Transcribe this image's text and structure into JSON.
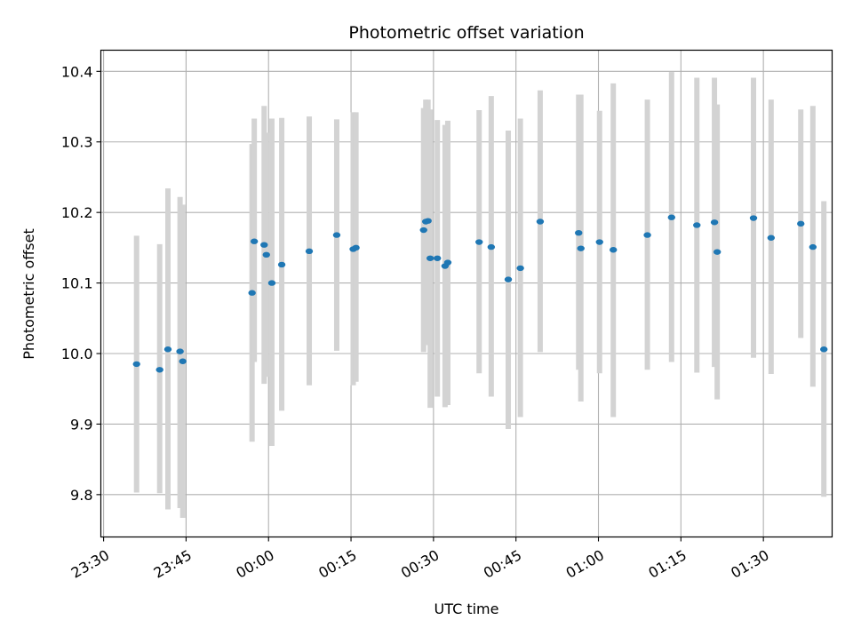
{
  "chart_data": {
    "type": "scatter",
    "title": "Photometric offset variation",
    "xlabel": "UTC time",
    "ylabel": "Photometric offset",
    "xlim_min": [
      -30.5,
      102.5
    ],
    "ylim": [
      9.74,
      10.43
    ],
    "grid": true,
    "colors": {
      "point": "#1f77b4",
      "errorbar": "#d3d3d3",
      "grid": "#b0b0b0"
    },
    "x_ticks": [
      {
        "value": -30,
        "label": "23:30"
      },
      {
        "value": -15,
        "label": "23:45"
      },
      {
        "value": 0,
        "label": "00:00"
      },
      {
        "value": 15,
        "label": "00:15"
      },
      {
        "value": 30,
        "label": "00:30"
      },
      {
        "value": 45,
        "label": "00:45"
      },
      {
        "value": 60,
        "label": "01:00"
      },
      {
        "value": 75,
        "label": "01:15"
      },
      {
        "value": 90,
        "label": "01:30"
      }
    ],
    "y_ticks": [
      {
        "value": 9.8,
        "label": "9.8"
      },
      {
        "value": 9.9,
        "label": "9.9"
      },
      {
        "value": 10.0,
        "label": "10.0"
      },
      {
        "value": 10.1,
        "label": "10.1"
      },
      {
        "value": 10.2,
        "label": "10.2"
      },
      {
        "value": 10.3,
        "label": "10.3"
      },
      {
        "value": 10.4,
        "label": "10.4"
      }
    ],
    "points": [
      {
        "t": -24.0,
        "y": 9.985,
        "lo": 9.803,
        "hi": 10.167
      },
      {
        "t": -19.8,
        "y": 9.977,
        "lo": 9.802,
        "hi": 10.155
      },
      {
        "t": -18.3,
        "y": 10.006,
        "lo": 9.779,
        "hi": 10.234
      },
      {
        "t": -16.1,
        "y": 10.003,
        "lo": 9.781,
        "hi": 10.222
      },
      {
        "t": -15.6,
        "y": 9.989,
        "lo": 9.767,
        "hi": 10.211
      },
      {
        "t": -3.0,
        "y": 10.086,
        "lo": 9.875,
        "hi": 10.297
      },
      {
        "t": -2.6,
        "y": 10.159,
        "lo": 9.988,
        "hi": 10.333
      },
      {
        "t": -0.8,
        "y": 10.154,
        "lo": 9.957,
        "hi": 10.351
      },
      {
        "t": -0.4,
        "y": 10.14,
        "lo": 9.967,
        "hi": 10.313
      },
      {
        "t": 0.6,
        "y": 10.1,
        "lo": 9.869,
        "hi": 10.333
      },
      {
        "t": 2.4,
        "y": 10.126,
        "lo": 9.919,
        "hi": 10.334
      },
      {
        "t": 7.4,
        "y": 10.145,
        "lo": 9.955,
        "hi": 10.336
      },
      {
        "t": 12.4,
        "y": 10.168,
        "lo": 10.004,
        "hi": 10.332
      },
      {
        "t": 15.4,
        "y": 10.148,
        "lo": 9.955,
        "hi": 10.342
      },
      {
        "t": 15.9,
        "y": 10.15,
        "lo": 9.96,
        "hi": 10.342
      },
      {
        "t": 28.2,
        "y": 10.175,
        "lo": 10.002,
        "hi": 10.348
      },
      {
        "t": 28.6,
        "y": 10.187,
        "lo": 10.012,
        "hi": 10.36
      },
      {
        "t": 29.0,
        "y": 10.188,
        "lo": 10.027,
        "hi": 10.36
      },
      {
        "t": 29.4,
        "y": 10.135,
        "lo": 9.923,
        "hi": 10.346
      },
      {
        "t": 30.7,
        "y": 10.135,
        "lo": 9.939,
        "hi": 10.331
      },
      {
        "t": 32.1,
        "y": 10.124,
        "lo": 9.924,
        "hi": 10.324
      },
      {
        "t": 32.6,
        "y": 10.129,
        "lo": 9.927,
        "hi": 10.33
      },
      {
        "t": 38.3,
        "y": 10.158,
        "lo": 9.972,
        "hi": 10.345
      },
      {
        "t": 40.5,
        "y": 10.151,
        "lo": 9.939,
        "hi": 10.365
      },
      {
        "t": 43.6,
        "y": 10.105,
        "lo": 9.893,
        "hi": 10.316
      },
      {
        "t": 45.8,
        "y": 10.121,
        "lo": 9.91,
        "hi": 10.333
      },
      {
        "t": 49.4,
        "y": 10.187,
        "lo": 10.002,
        "hi": 10.373
      },
      {
        "t": 56.4,
        "y": 10.171,
        "lo": 9.977,
        "hi": 10.367
      },
      {
        "t": 56.8,
        "y": 10.149,
        "lo": 9.932,
        "hi": 10.367
      },
      {
        "t": 60.2,
        "y": 10.158,
        "lo": 9.972,
        "hi": 10.344
      },
      {
        "t": 62.7,
        "y": 10.147,
        "lo": 9.91,
        "hi": 10.383
      },
      {
        "t": 68.9,
        "y": 10.168,
        "lo": 9.977,
        "hi": 10.36
      },
      {
        "t": 73.3,
        "y": 10.193,
        "lo": 9.988,
        "hi": 10.399
      },
      {
        "t": 77.9,
        "y": 10.182,
        "lo": 9.973,
        "hi": 10.391
      },
      {
        "t": 81.1,
        "y": 10.186,
        "lo": 9.981,
        "hi": 10.391
      },
      {
        "t": 81.6,
        "y": 10.144,
        "lo": 9.935,
        "hi": 10.353
      },
      {
        "t": 88.2,
        "y": 10.192,
        "lo": 9.994,
        "hi": 10.391
      },
      {
        "t": 91.4,
        "y": 10.164,
        "lo": 9.971,
        "hi": 10.36
      },
      {
        "t": 96.8,
        "y": 10.184,
        "lo": 10.022,
        "hi": 10.346
      },
      {
        "t": 99.0,
        "y": 10.151,
        "lo": 9.953,
        "hi": 10.351
      },
      {
        "t": 101.0,
        "y": 10.006,
        "lo": 9.797,
        "hi": 10.216
      }
    ]
  }
}
